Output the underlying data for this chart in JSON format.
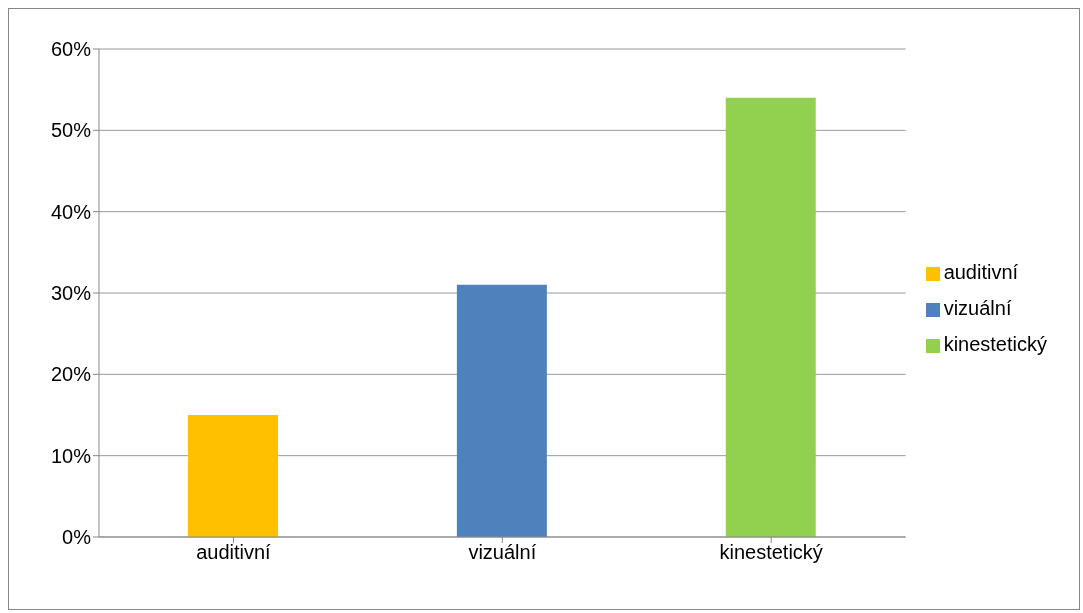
{
  "chart_data": {
    "type": "bar",
    "categories": [
      "auditivní",
      "vizuální",
      "kinestetický"
    ],
    "series": [
      {
        "name": "auditivní",
        "color": "#ffc000",
        "values": [
          15,
          null,
          null
        ]
      },
      {
        "name": "vizuální",
        "color": "#4f81bd",
        "values": [
          null,
          31,
          null
        ]
      },
      {
        "name": "kinestetický",
        "color": "#92d050",
        "values": [
          null,
          null,
          54
        ]
      }
    ],
    "stacked": true,
    "ylim": [
      0,
      60
    ],
    "yticks": [
      {
        "value": 0,
        "label": "0%"
      },
      {
        "value": 10,
        "label": "10%"
      },
      {
        "value": 20,
        "label": "20%"
      },
      {
        "value": 30,
        "label": "30%"
      },
      {
        "value": 40,
        "label": "40%"
      },
      {
        "value": 50,
        "label": "50%"
      },
      {
        "value": 60,
        "label": "60%"
      }
    ],
    "grid": "y",
    "legend": "right"
  }
}
